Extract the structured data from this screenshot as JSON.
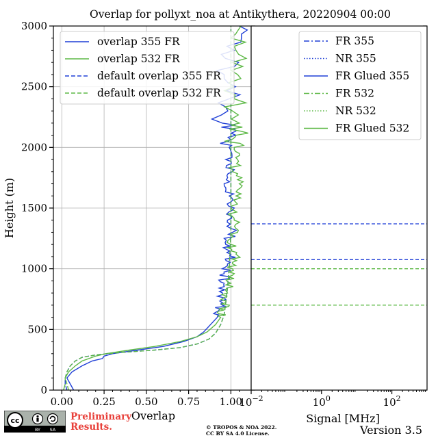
{
  "chart_data": [
    {
      "type": "line",
      "title": "Overlap for pollyxt_noa at Antikythera, 20220904 00:00",
      "xlabel": "Overlap",
      "ylabel": "Height (m)",
      "xlim": [
        -0.05,
        1.12
      ],
      "ylim": [
        0,
        3000
      ],
      "xticks": [
        "0.00",
        "0.25",
        "0.50",
        "0.75",
        "1.00"
      ],
      "yticks": [
        "0",
        "500",
        "1000",
        "1500",
        "2000",
        "2500",
        "3000"
      ],
      "grid": true,
      "legend_position": "upper-left",
      "series": [
        {
          "name": "overlap 355 FR",
          "color": "#1f3fd6",
          "style": "solid",
          "x": [
            0.07,
            0.05,
            0.03,
            0.06,
            0.12,
            0.18,
            0.24,
            0.25,
            0.3,
            0.45,
            0.6,
            0.72,
            0.8,
            0.84,
            0.88,
            0.92,
            0.93,
            0.95,
            0.95,
            0.96,
            0.96,
            0.98,
            1.0,
            0.97,
            1.01,
            0.98,
            1.02,
            0.99,
            0.96,
            1.01,
            0.97,
            0.99,
            1.03,
            0.95,
            0.99,
            0.96,
            1.02,
            1.05
          ],
          "y": [
            0,
            50,
            100,
            150,
            200,
            240,
            260,
            280,
            300,
            330,
            360,
            400,
            440,
            480,
            540,
            600,
            660,
            720,
            800,
            880,
            960,
            1040,
            1120,
            1200,
            1300,
            1400,
            1500,
            1600,
            1700,
            1800,
            1900,
            2000,
            2100,
            2200,
            2400,
            2600,
            2800,
            3000
          ]
        },
        {
          "name": "overlap 532 FR",
          "color": "#5cb845",
          "style": "solid",
          "x": [
            0.01,
            0.02,
            0.02,
            0.04,
            0.08,
            0.12,
            0.16,
            0.2,
            0.26,
            0.4,
            0.55,
            0.7,
            0.8,
            0.86,
            0.91,
            0.94,
            0.96,
            0.97,
            0.98,
            1.0,
            1.02,
            1.01,
            1.03,
            1.0,
            1.04,
            1.02,
            1.0,
            1.03,
            1.05,
            1.01,
            1.04,
            1.02,
            1.03,
            1.05,
            1.02,
            1.04,
            1.03,
            1.06
          ],
          "y": [
            0,
            50,
            100,
            150,
            200,
            240,
            260,
            280,
            300,
            330,
            360,
            400,
            440,
            480,
            540,
            600,
            660,
            720,
            800,
            880,
            960,
            1040,
            1120,
            1200,
            1300,
            1400,
            1500,
            1600,
            1700,
            1800,
            1900,
            2000,
            2100,
            2200,
            2400,
            2600,
            2800,
            3000
          ]
        },
        {
          "name": "default overlap 355 FR",
          "color": "#1f3fd6",
          "style": "dashed",
          "x": [
            0.03,
            0.02,
            0.02,
            0.03,
            0.05,
            0.08,
            0.12,
            0.2,
            0.35,
            0.55,
            0.7,
            0.8,
            0.87,
            0.91,
            0.94,
            0.96,
            0.97,
            0.98,
            0.99,
            1.0,
            1.0,
            1.0
          ],
          "y": [
            0,
            50,
            100,
            150,
            200,
            240,
            270,
            290,
            310,
            330,
            350,
            380,
            420,
            470,
            540,
            620,
            720,
            840,
            1000,
            1300,
            2000,
            3000
          ]
        },
        {
          "name": "default overlap 532 FR",
          "color": "#5cb845",
          "style": "dashed",
          "x": [
            0.04,
            0.03,
            0.02,
            0.03,
            0.05,
            0.08,
            0.12,
            0.2,
            0.35,
            0.55,
            0.7,
            0.8,
            0.87,
            0.91,
            0.94,
            0.96,
            0.97,
            0.98,
            0.99,
            1.0,
            1.0,
            1.0
          ],
          "y": [
            0,
            50,
            100,
            150,
            200,
            240,
            270,
            290,
            310,
            330,
            350,
            380,
            420,
            470,
            540,
            620,
            720,
            840,
            1000,
            1300,
            2000,
            3000
          ]
        }
      ]
    },
    {
      "type": "line",
      "xlabel": "Signal [MHz]",
      "xscale": "log",
      "xlim": [
        0.01,
        1000
      ],
      "ylim": [
        0,
        3000
      ],
      "xticks": [
        {
          "base": "10",
          "exp": "−2",
          "value": 0.01
        },
        {
          "base": "10",
          "exp": "0",
          "value": 1
        },
        {
          "base": "10",
          "exp": "2",
          "value": 100
        }
      ],
      "legend_position": "upper-right",
      "series": [
        {
          "name": "FR 355",
          "color": "#1f3fd6",
          "style": "dashdot"
        },
        {
          "name": "NR 355",
          "color": "#1f3fd6",
          "style": "dotted"
        },
        {
          "name": "FR Glued 355",
          "color": "#1f3fd6",
          "style": "solid"
        },
        {
          "name": "FR 532",
          "color": "#5cb845",
          "style": "dashdot"
        },
        {
          "name": "NR 532",
          "color": "#5cb845",
          "style": "dotted"
        },
        {
          "name": "FR Glued 532",
          "color": "#5cb845",
          "style": "solid"
        }
      ],
      "reference_lines": [
        {
          "height": 1370,
          "color": "#1f3fd6",
          "style": "dashed"
        },
        {
          "height": 1075,
          "color": "#1f3fd6",
          "style": "dashed"
        },
        {
          "height": 1000,
          "color": "#5cb845",
          "style": "dashed"
        },
        {
          "height": 700,
          "color": "#5cb845",
          "style": "dashed"
        }
      ]
    }
  ],
  "footer": {
    "preliminary": "Preliminary Results.",
    "copyright_line1": "© TROPOS & NOA 2022.",
    "copyright_line2": "CC BY SA 4.0 License.",
    "version": "Version 3.5",
    "badge_cc": "cc",
    "badge_by": "BY",
    "badge_sa": "SA"
  }
}
